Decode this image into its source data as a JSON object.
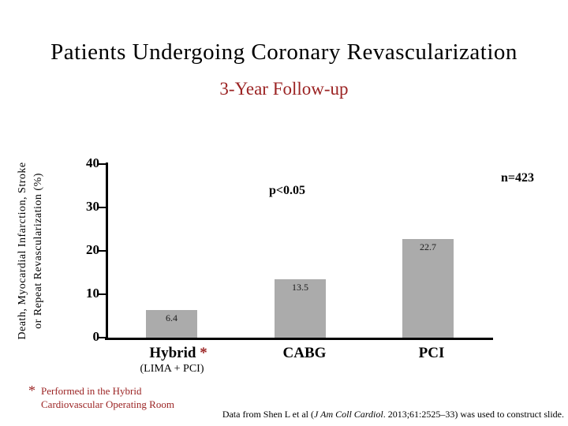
{
  "slide": {
    "title": "Patients Undergoing Coronary Revascularization",
    "subtitle": "3-Year Follow-up"
  },
  "chart_data": {
    "type": "bar",
    "title": "Patients Undergoing Coronary Revascularization",
    "subtitle": "3-Year Follow-up",
    "categories": [
      "Hybrid (LIMA + PCI)",
      "CABG",
      "PCI"
    ],
    "values": [
      6.4,
      13.5,
      22.7
    ],
    "bar_labels": [
      "6.4",
      "13.5",
      "22.7"
    ],
    "xlabel": "",
    "ylabel": "Death, Myocardial Infarction, Stroke or Repeat Revascularization (%)",
    "ylabel_line1": "Death, Myocardial Infarction, Stroke",
    "ylabel_line2": "or Repeat Revascularization (%)",
    "yticks": [
      0,
      10,
      20,
      30,
      40
    ],
    "ylim": [
      0,
      40
    ],
    "grid": false,
    "legend_position": "none",
    "bar_color": "#ABABAB",
    "annotations": {
      "p_value": "p<0.05",
      "n_label": "n=423"
    }
  },
  "categories": {
    "hybrid": "Hybrid",
    "hybrid_marker": "*",
    "hybrid_sub": "(LIMA + PCI)",
    "cabg": "CABG",
    "pci": "PCI"
  },
  "footnote": {
    "marker": "*",
    "line1": "Performed in the Hybrid",
    "line2": "Cardiovascular Operating Room"
  },
  "citation": {
    "prefix": "Data from Shen L et al (",
    "journal": "J Am Coll Cardiol",
    "suffix": ". 2013;61:2525–33) was used to construct slide."
  },
  "colors": {
    "accent_red": "#9B2323",
    "bar_gray": "#ABABAB",
    "text_black": "#000000"
  }
}
